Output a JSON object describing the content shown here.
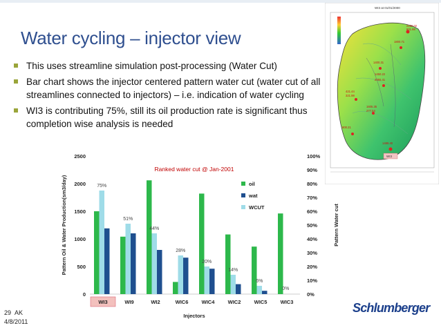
{
  "slide": {
    "title": "Water cycling – injector view",
    "bullets": [
      "This uses streamline simulation post-processing (Water Cut)",
      "Bar chart shows the injector centered pattern water cut (water cut of all streamlines connected to injectors) – i.e. indication of water cycling",
      "WI3 is contributing 75%, still its oil production rate is significant thus completion wise analysis is needed"
    ],
    "footer_number": "29",
    "footer_author": "AK",
    "footer_date": "4/8/2011",
    "logo": "Schlumberger",
    "accent_color": "#2f4f8f",
    "bullet_color": "#9aa53a"
  },
  "map": {
    "title": "WI3 at 01/01/2000",
    "labels": [
      "2150.02",
      "601.98",
      "1800.71",
      "1400.31",
      "1450.22",
      "2055.41",
      "421.44",
      "321.98",
      "1605.35",
      "277.54",
      "800.21",
      "1489.40"
    ],
    "tag": "WI3"
  },
  "chart_data": {
    "type": "bar",
    "title": "Ranked water cut @ Jan-2001",
    "xlabel": "Injectors",
    "ylabel": "Pattern Oil & Water Production(sm3/day)",
    "y2label": "Pattern Water cut",
    "categories": [
      "WI3",
      "WI9",
      "WI2",
      "WIC6",
      "WIC4",
      "WIC2",
      "WIC5",
      "WIC3"
    ],
    "highlight": "WI3",
    "ylim": [
      0,
      2500
    ],
    "y_ticks": [
      "0",
      "500",
      "1000",
      "1500",
      "2000",
      "2500"
    ],
    "y2lim": [
      0,
      100
    ],
    "y2_ticks": [
      "0%",
      "10%",
      "20%",
      "30%",
      "40%",
      "50%",
      "60%",
      "70%",
      "80%",
      "90%",
      "100%"
    ],
    "series": [
      {
        "name": "oil",
        "axis": "left",
        "color": "#2db84b",
        "values": [
          1500,
          1040,
          2060,
          220,
          1820,
          1080,
          860,
          1460
        ]
      },
      {
        "name": "wat",
        "axis": "left",
        "color": "#1f4f8f",
        "values": [
          1190,
          1100,
          800,
          660,
          460,
          180,
          60,
          0
        ]
      },
      {
        "name": "WCUT",
        "axis": "right",
        "color": "#9fdce8",
        "values": [
          75,
          51,
          44,
          28,
          20,
          14,
          6,
          0
        ]
      }
    ],
    "wcut_labels": [
      "75%",
      "51%",
      "44%",
      "28%",
      "20%",
      "14%",
      "6%",
      "0%"
    ]
  }
}
